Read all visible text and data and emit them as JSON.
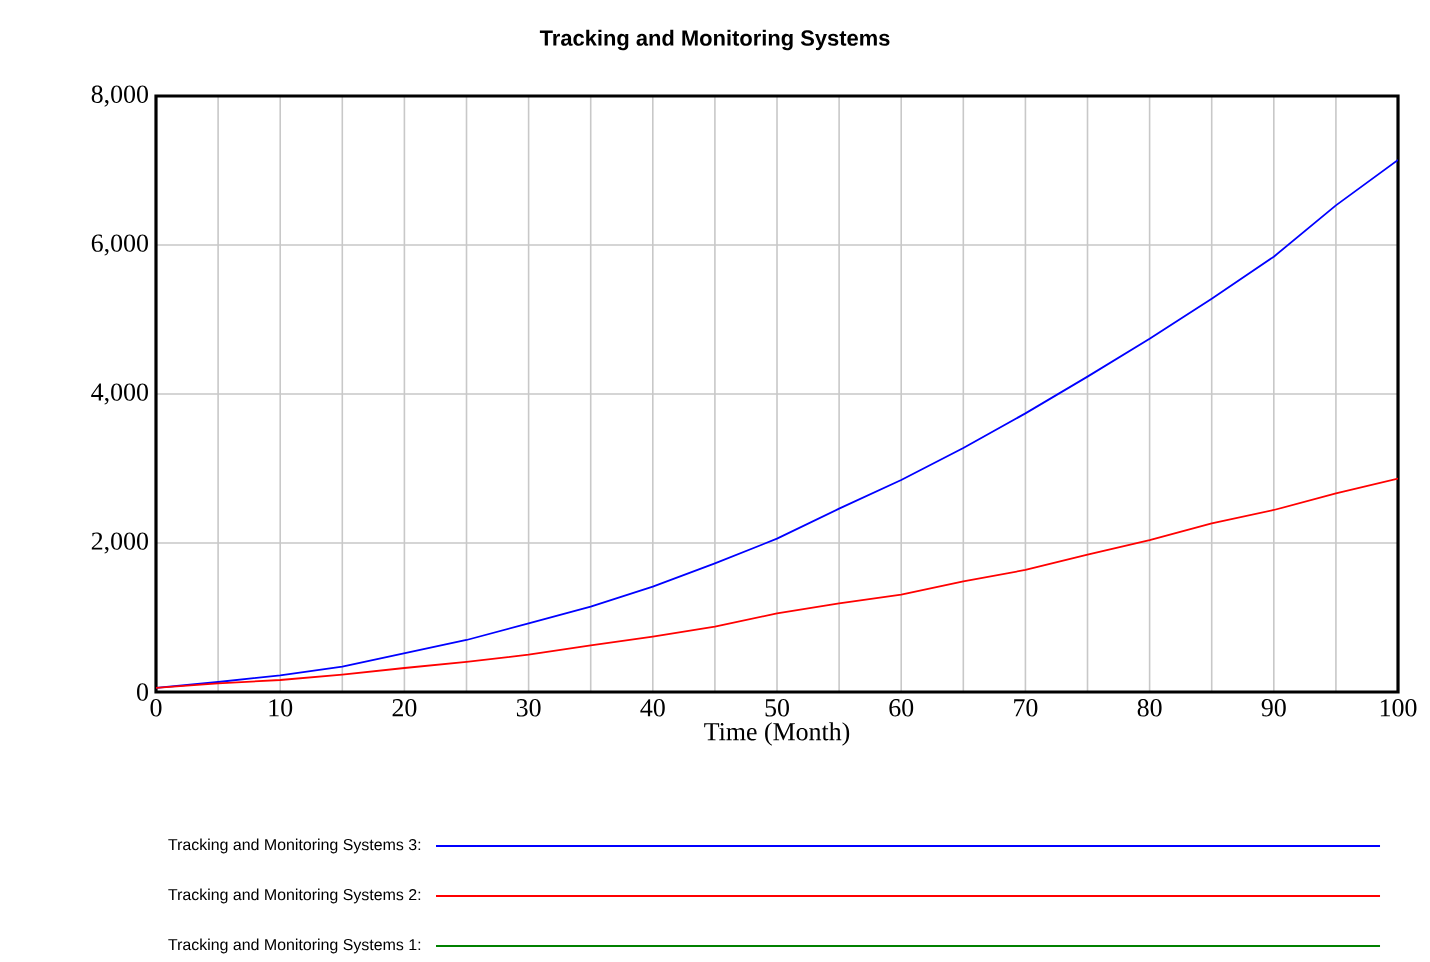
{
  "chart_data": {
    "type": "line",
    "title": "Tracking and Monitoring Systems",
    "xlabel": "Time (Month)",
    "x": [
      0,
      5,
      10,
      15,
      20,
      25,
      30,
      35,
      40,
      45,
      50,
      55,
      60,
      65,
      70,
      75,
      80,
      85,
      90,
      95,
      100
    ],
    "series": [
      {
        "name": "Tracking and Monitoring Systems 3:",
        "color": "#0000ff",
        "values": [
          54,
          134,
          224,
          340,
          519,
          698,
          922,
          1145,
          1414,
          1727,
          2058,
          2461,
          2846,
          3275,
          3740,
          4233,
          4743,
          5280,
          5843,
          6532,
          7141
        ]
      },
      {
        "name": "Tracking and Monitoring Systems 2:",
        "color": "#ff0000",
        "values": [
          54,
          116,
          161,
          233,
          322,
          403,
          501,
          626,
          743,
          877,
          1056,
          1190,
          1306,
          1485,
          1638,
          1843,
          2040,
          2264,
          2443,
          2666,
          2864
        ]
      },
      {
        "name": "Tracking and Monitoring Systems 1:",
        "color": "#008000",
        "values": [
          null,
          null,
          null,
          null,
          null,
          null,
          null,
          null,
          null,
          null,
          null,
          null,
          null,
          null,
          null,
          null,
          null,
          null,
          null,
          null,
          null
        ]
      }
    ],
    "xlim": [
      0,
      100
    ],
    "ylim": [
      0,
      8000
    ],
    "xticks": [
      0,
      {
        "value": 5,
        "label": null
      },
      10,
      {
        "value": 15,
        "label": null
      },
      20,
      {
        "value": 25,
        "label": null
      },
      30,
      {
        "value": 35,
        "label": null
      },
      40,
      {
        "value": 45,
        "label": null
      },
      50,
      {
        "value": 55,
        "label": null
      },
      60,
      {
        "value": 65,
        "label": null
      },
      70,
      {
        "value": 75,
        "label": null
      },
      80,
      {
        "value": 85,
        "label": null
      },
      90,
      {
        "value": 95,
        "label": null
      },
      100
    ],
    "yticks": [
      0,
      {
        "value": 2000,
        "label": "2,000"
      },
      {
        "value": 4000,
        "label": "4,000"
      },
      {
        "value": 6000,
        "label": "6,000"
      },
      {
        "value": 8000,
        "label": "8,000"
      }
    ],
    "grid": true,
    "legend": "bottom",
    "marker": "none",
    "line_style": "solid"
  }
}
